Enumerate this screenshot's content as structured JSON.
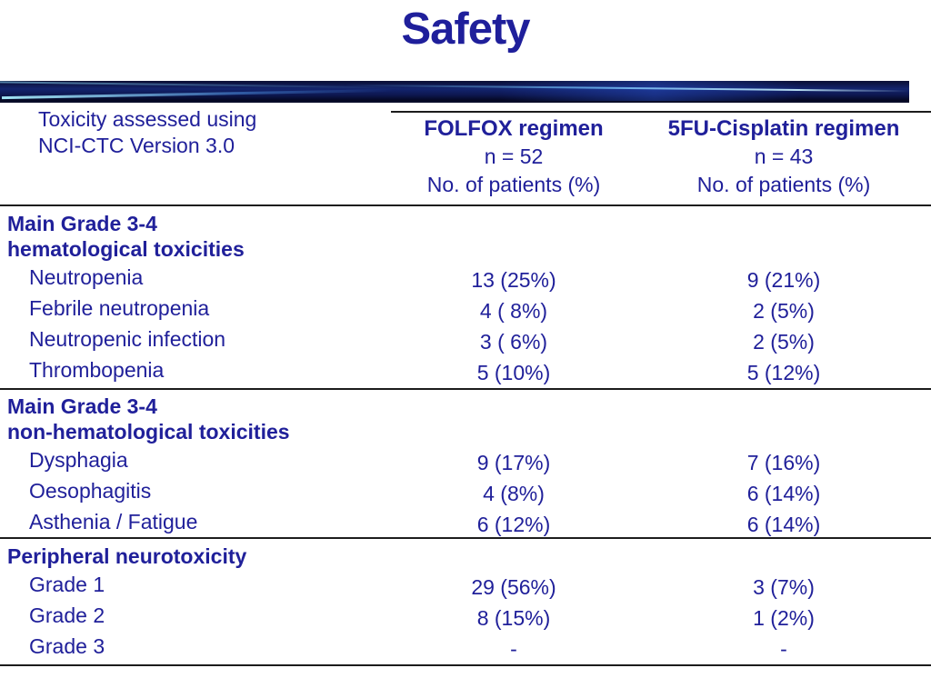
{
  "title": "Safety",
  "colors": {
    "text_navy": "#20209a",
    "title_navy": "#1f1f9b",
    "rule_line": "#1c1c1c",
    "bar_base_navy": "#13246e",
    "bar_streak_cyan": "#aaf0ff"
  },
  "table": {
    "note": {
      "line1": "Toxicity assessed using",
      "line2": "NCI-CTC Version 3.0"
    },
    "columns": [
      {
        "name": "FOLFOX regimen",
        "n": "n = 52",
        "unit": "No. of patients (%)"
      },
      {
        "name": "5FU-Cisplatin regimen",
        "n": "n = 43",
        "unit": "No. of patients (%)"
      }
    ],
    "sections": [
      {
        "h1": "Main Grade 3-4",
        "h2": "hematological toxicities",
        "rows": [
          {
            "label": "Neutropenia",
            "folfox": "13 (25%)",
            "cisplatin": "9 (21%)"
          },
          {
            "label": "Febrile neutropenia",
            "folfox": "4 ( 8%)",
            "cisplatin": "2 (5%)"
          },
          {
            "label": "Neutropenic infection",
            "folfox": "3 ( 6%)",
            "cisplatin": "2 (5%)"
          },
          {
            "label": "Thrombopenia",
            "folfox": "5 (10%)",
            "cisplatin": "5 (12%)"
          }
        ]
      },
      {
        "h1": "Main Grade 3-4",
        "h2": "non-hematological toxicities",
        "rows": [
          {
            "label": "Dysphagia",
            "folfox": "9 (17%)",
            "cisplatin": "7 (16%)"
          },
          {
            "label": "Oesophagitis",
            "folfox": "4 (8%)",
            "cisplatin": "6 (14%)"
          },
          {
            "label": "Asthenia / Fatigue",
            "folfox": "6 (12%)",
            "cisplatin": "6 (14%)"
          }
        ]
      },
      {
        "h1": "Peripheral neurotoxicity",
        "rows": [
          {
            "label": "Grade 1",
            "folfox": "29 (56%)",
            "cisplatin": "3 (7%)"
          },
          {
            "label": "Grade 2",
            "folfox": "8 (15%)",
            "cisplatin": "1 (2%)"
          },
          {
            "label": "Grade 3",
            "folfox": "-",
            "cisplatin": "-"
          }
        ]
      }
    ]
  }
}
